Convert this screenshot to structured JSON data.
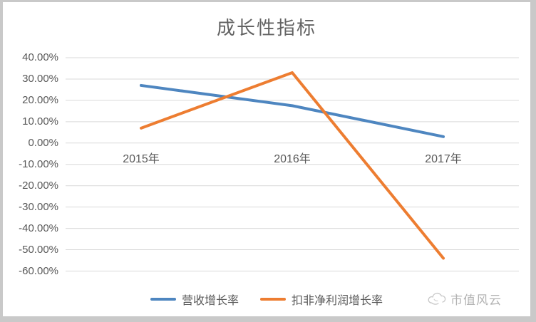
{
  "chart_data": {
    "type": "line",
    "title": "成长性指标",
    "categories": [
      "2015年",
      "2016年",
      "2017年"
    ],
    "series": [
      {
        "name": "营收增长率",
        "color": "#4e86c0",
        "values": [
          27,
          17.5,
          3
        ]
      },
      {
        "name": "扣非净利润增长率",
        "color": "#ed7d31",
        "values": [
          7,
          33,
          -54
        ]
      }
    ],
    "value_unit": "percent",
    "ylim": [
      -60,
      40
    ],
    "ytick_step": 10,
    "ytick_labels": [
      "40.00%",
      "30.00%",
      "20.00%",
      "10.00%",
      "0.00%",
      "-10.00%",
      "-20.00%",
      "-30.00%",
      "-40.00%",
      "-50.00%",
      "-60.00%"
    ],
    "grid": true,
    "legend_position": "bottom"
  },
  "watermark": {
    "text": "市值风云"
  },
  "colors": {
    "grid": "#d9d9d9",
    "axis_text": "#595959",
    "title_text": "#636363",
    "watermark_text": "#9a9a9a",
    "frame": "#c9c9c9",
    "canvas": "#ffffff"
  }
}
